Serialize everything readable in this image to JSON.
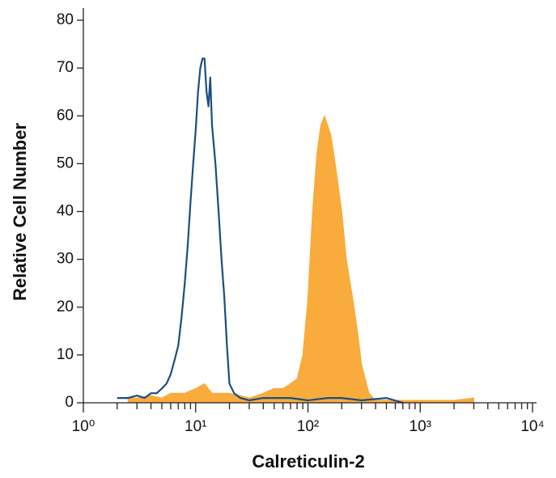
{
  "chart_data": {
    "type": "histogram-overlay",
    "x_label": "Calreticulin-2",
    "y_label": "Relative Cell Number",
    "log_x": true,
    "xlim": [
      1,
      10000
    ],
    "ylim": [
      0,
      80
    ],
    "xticks": [
      {
        "value": 1,
        "label": "10⁰"
      },
      {
        "value": 10,
        "label": "10¹"
      },
      {
        "value": 100,
        "label": "10²"
      },
      {
        "value": 1000,
        "label": "10³"
      },
      {
        "value": 10000,
        "label": "10⁴"
      }
    ],
    "yticks": [
      0,
      10,
      20,
      30,
      40,
      50,
      60,
      70,
      80
    ],
    "series": [
      {
        "name": null,
        "style": "filled",
        "color": "#f9ab3b",
        "x": [
          2.5,
          3,
          4,
          5,
          6,
          7,
          8,
          10,
          12,
          14,
          16,
          20,
          25,
          30,
          40,
          50,
          60,
          70,
          80,
          90,
          100,
          110,
          120,
          130,
          140,
          150,
          160,
          170,
          180,
          200,
          220,
          250,
          280,
          300,
          350,
          400,
          500,
          700,
          1000,
          2000,
          3000
        ],
        "values": [
          1,
          1,
          1.5,
          1,
          2,
          2,
          2,
          3,
          4,
          2,
          2,
          2,
          1.5,
          1,
          2,
          3,
          3,
          4,
          5,
          10,
          22,
          40,
          52,
          58,
          60,
          58,
          56,
          52,
          48,
          40,
          30,
          22,
          14,
          8,
          2,
          0.5,
          0.5,
          0.5,
          0.5,
          0.5,
          1
        ]
      },
      {
        "name": null,
        "style": "line",
        "color": "#1a4f80",
        "x": [
          2,
          2.5,
          3,
          3.5,
          4,
          4.5,
          5,
          5.5,
          6,
          6.5,
          7,
          7.5,
          8,
          8.5,
          9,
          9.5,
          10,
          10.5,
          11,
          11.5,
          12,
          12.5,
          13,
          13.5,
          14,
          15,
          16,
          17,
          18,
          19,
          20,
          22,
          25,
          30,
          40,
          50,
          70,
          100,
          150,
          200,
          300,
          500,
          700
        ],
        "values": [
          1,
          1,
          1.5,
          1,
          2,
          2,
          3,
          4,
          6,
          9,
          12,
          18,
          25,
          33,
          42,
          50,
          57,
          65,
          70,
          72,
          72,
          65,
          62,
          68,
          58,
          50,
          40,
          30,
          22,
          12,
          4,
          2,
          1,
          0.5,
          1,
          1,
          1,
          0.5,
          1,
          1,
          0.5,
          1,
          0
        ]
      }
    ]
  }
}
